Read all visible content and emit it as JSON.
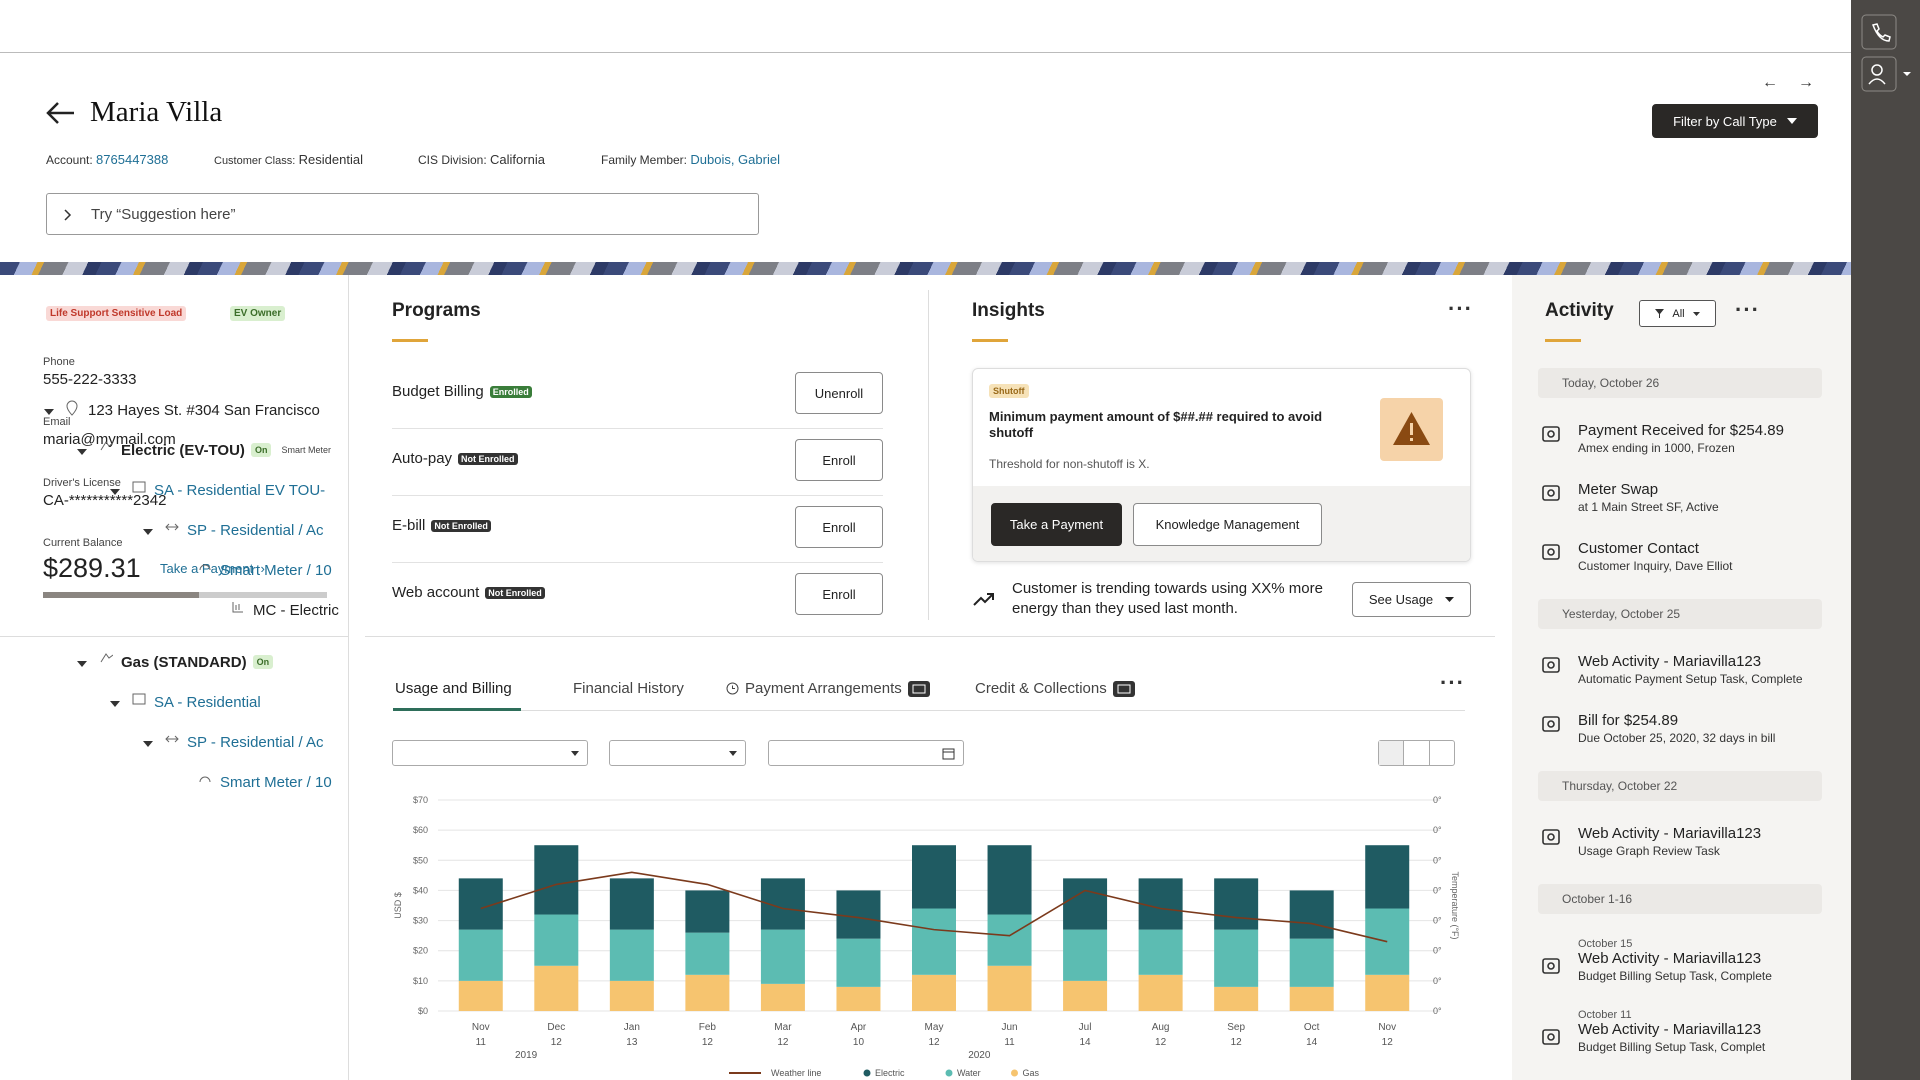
{
  "header": {
    "name": "Maria Villa",
    "fields": [
      {
        "label": "Account:",
        "value": "8765447388"
      },
      {
        "label": "Customer Class:",
        "value": "Residential"
      },
      {
        "label": "CIS Division:",
        "value": "California"
      },
      {
        "label": "Family Member:",
        "value": "Dubois, Gabriel"
      }
    ],
    "search_placeholder": "Try “Suggestion here”",
    "filter_button": "Filter by Call Type"
  },
  "profile": {
    "tags": [
      "Life Support Sensitive Load",
      "EV Owner"
    ],
    "fields": [
      {
        "label": "Phone",
        "value": "555-222-3333"
      },
      {
        "label": "Email",
        "value": "maria@mymail.com"
      },
      {
        "label": "Driver's License",
        "value": "CA-***********2342"
      }
    ],
    "balance_label": "Current Balance",
    "balance": "$289.31",
    "payment_link": "Take a Payment"
  },
  "tree": {
    "label": "123 Hayes St. #304 San Francisco",
    "children": [
      {
        "label": "Electric (EV-TOU)",
        "tags": [
          "On",
          "Smart Meter"
        ],
        "children": [
          {
            "label": "SA - Residential EV TOU-",
            "children": [
              {
                "label": "SP - Residential / Ac",
                "children": [
                  {
                    "label": "Smart Meter / 10",
                    "children": [
                      {
                        "label": "MC - Electric"
                      }
                    ]
                  }
                ]
              }
            ]
          }
        ]
      },
      {
        "label": "Gas (STANDARD)",
        "tags": [
          "On"
        ],
        "children": [
          {
            "label": "SA - Residential",
            "children": [
              {
                "label": "SP - Residential / Ac",
                "children": [
                  {
                    "label": "Smart Meter / 10"
                  }
                ]
              }
            ]
          }
        ]
      }
    ]
  },
  "programs": {
    "title": "Programs",
    "items": [
      {
        "name": "Budget Billing",
        "status": "Enrolled",
        "action": "Unenroll"
      },
      {
        "name": "Auto-pay",
        "status": "Not Enrolled",
        "action": "Enroll"
      },
      {
        "name": "E-bill",
        "status": "Not Enrolled",
        "action": "Enroll"
      },
      {
        "name": "Web account",
        "status": "Not Enrolled",
        "action": "Enroll"
      }
    ]
  },
  "insights": {
    "title": "Insights",
    "alert": {
      "tag": "Shutoff",
      "title": "Minimum payment amount of $##.## required to avoid shutoff",
      "text": "Threshold for non-shutoff is X.",
      "buttons": [
        "Take a Payment",
        "Knowledge Management"
      ]
    },
    "trend": "Customer is trending towards using XX% more energy than they used last month.",
    "trend_button": "See Usage"
  },
  "tabs": [
    "Usage and Billing",
    "Financial History",
    "Payment Arrangements",
    "Credit & Collections"
  ],
  "chart_data": {
    "type": "bar",
    "stacked": true,
    "categories": [
      [
        "Nov",
        "11",
        null
      ],
      [
        "Dec",
        "12",
        "2019"
      ],
      [
        "Jan",
        "13",
        null
      ],
      [
        "Feb",
        "12",
        null
      ],
      [
        "Mar",
        "12",
        null
      ],
      [
        "Apr",
        "10",
        null
      ],
      [
        "May",
        "12",
        null
      ],
      [
        "Jun",
        "11",
        "2020"
      ],
      [
        "Jul",
        "14",
        null
      ],
      [
        "Aug",
        "12",
        null
      ],
      [
        "Sep",
        "12",
        null
      ],
      [
        "Oct",
        "14",
        null
      ],
      [
        "Nov",
        "12",
        null
      ]
    ],
    "series": [
      {
        "name": "Gas",
        "type": "bar",
        "color": "#f6c46f",
        "values": [
          10,
          15,
          10,
          12,
          9,
          8,
          12,
          15,
          10,
          12,
          8,
          8,
          12
        ]
      },
      {
        "name": "Water",
        "type": "bar",
        "color": "#5cbcb2",
        "values": [
          17,
          17,
          17,
          14,
          18,
          16,
          22,
          17,
          17,
          15,
          19,
          16,
          22
        ]
      },
      {
        "name": "Electric",
        "type": "bar",
        "color": "#1f5b62",
        "values": [
          17,
          23,
          17,
          14,
          17,
          16,
          21,
          23,
          17,
          17,
          17,
          16,
          21
        ]
      },
      {
        "name": "Weather line",
        "type": "line",
        "color": "#7b3a1c",
        "values": [
          34,
          42,
          46,
          42,
          34,
          31,
          27,
          25,
          40,
          34,
          31,
          29,
          23
        ]
      }
    ],
    "ylabel": "USD $",
    "ylim": [
      0,
      70
    ],
    "yticks": [
      {
        "value": 0,
        "label": "$0"
      },
      {
        "value": 10,
        "label": "$10"
      },
      {
        "value": 20,
        "label": "$20"
      },
      {
        "value": 30,
        "label": "$30"
      },
      {
        "value": 40,
        "label": "$40"
      },
      {
        "value": 50,
        "label": "$50"
      },
      {
        "value": 60,
        "label": "$60"
      },
      {
        "value": 70,
        "label": "$70"
      }
    ],
    "y2label": "Temperature (°F)",
    "y2_tick_labels": [
      "0°",
      "0°",
      "0°",
      "0°",
      "0°",
      "0°",
      "0°",
      "0°"
    ],
    "grid": true
  },
  "activity": {
    "title": "Activity",
    "filter": "All",
    "groups": [
      {
        "heading": "Today, October 26",
        "items": [
          {
            "title": "Payment Received for $254.89",
            "detail": "Amex ending in 1000, Frozen"
          },
          {
            "title": "Meter Swap",
            "detail": "at 1 Main Street SF, Active"
          },
          {
            "title": "Customer Contact",
            "detail": "Customer Inquiry, Dave Elliot"
          }
        ]
      },
      {
        "heading": "Yesterday, October 25",
        "items": [
          {
            "title": "Web Activity - Mariavilla123",
            "detail": "Automatic Payment Setup Task, Complete"
          },
          {
            "title": "Bill for $254.89",
            "detail": "Due October 25, 2020, 32 days in bill"
          }
        ]
      },
      {
        "heading": "Thursday, October 22",
        "items": [
          {
            "title": "Web Activity - Mariavilla123",
            "detail": "Usage Graph Review Task"
          }
        ]
      },
      {
        "heading": "October 1-16",
        "items": [
          {
            "date": "October 15",
            "title": "Web Activity - Mariavilla123",
            "detail": "Budget Billing Setup Task, Complete"
          },
          {
            "date": "October 11",
            "title": "Web Activity - Mariavilla123",
            "detail": "Budget Billing Setup Task, Complet"
          }
        ]
      }
    ]
  }
}
